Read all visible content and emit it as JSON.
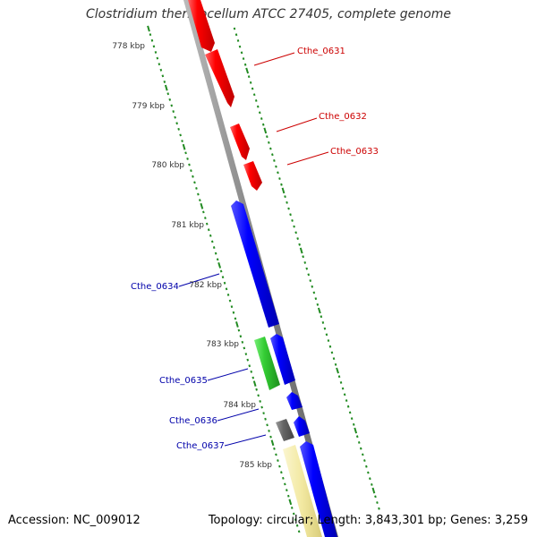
{
  "title": "Clostridium thermocellum ATCC 27405, complete genome",
  "footer": {
    "accession_label": "Accession:",
    "accession": "NC_009012",
    "topology_label": "Topology:",
    "topology": "circular",
    "length_label": "Length:",
    "length": "3,843,301 bp",
    "genes_label": "Genes:",
    "genes": "3,259"
  },
  "colors": {
    "forward_strand": "#ff0000",
    "reverse_strand": "#0000ff",
    "backbone": "#808080",
    "ticks": "#228b22",
    "gene_green": "#33cc33",
    "gene_gray": "#666666",
    "gene_yellow": "#f2e8a0"
  },
  "ruler_ticks": [
    {
      "label": "778 kbp"
    },
    {
      "label": "779 kbp"
    },
    {
      "label": "780 kbp"
    },
    {
      "label": "781 kbp"
    },
    {
      "label": "782 kbp"
    },
    {
      "label": "783 kbp"
    },
    {
      "label": "784 kbp"
    },
    {
      "label": "785 kbp"
    }
  ],
  "gene_labels": [
    {
      "name": "Cthe_0631",
      "color": "#cc0000"
    },
    {
      "name": "Cthe_0632",
      "color": "#cc0000"
    },
    {
      "name": "Cthe_0633",
      "color": "#cc0000"
    },
    {
      "name": "Cthe_0634",
      "color": "#0000aa"
    },
    {
      "name": "Cthe_0635",
      "color": "#0000aa"
    },
    {
      "name": "Cthe_0636",
      "color": "#0000aa"
    },
    {
      "name": "Cthe_0637",
      "color": "#0000aa"
    }
  ]
}
